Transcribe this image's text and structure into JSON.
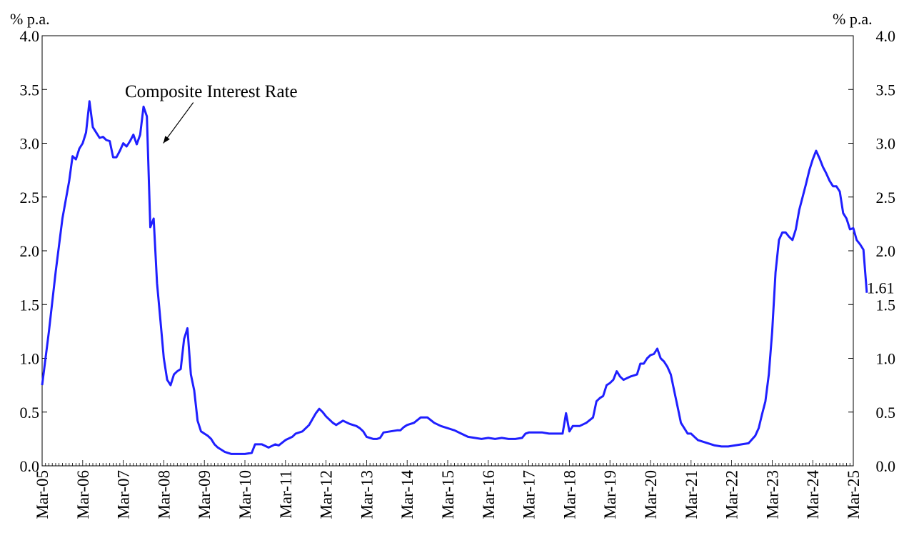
{
  "chart_data": {
    "type": "line",
    "unit_left": "% p.a.",
    "unit_right": "% p.a.",
    "ylim": [
      0,
      4
    ],
    "y_ticks": [
      "0.0",
      "0.5",
      "1.0",
      "1.5",
      "2.0",
      "2.5",
      "3.0",
      "3.5",
      "4.0"
    ],
    "x_tick_labels": [
      "Mar-05",
      "Mar-06",
      "Mar-07",
      "Mar-08",
      "Mar-09",
      "Mar-10",
      "Mar-11",
      "Mar-12",
      "Mar-13",
      "Mar-14",
      "Mar-15",
      "Mar-16",
      "Mar-17",
      "Mar-18",
      "Mar-19",
      "Mar-20",
      "Mar-21",
      "Mar-22",
      "Mar-23",
      "Mar-24",
      "Mar-25"
    ],
    "x_start": "2005-03",
    "x_end": "2025-03",
    "series": [
      {
        "name": "Composite Interest Rate",
        "color": "#1f1fff",
        "points": [
          [
            "2005-03",
            0.75
          ],
          [
            "2005-05",
            1.25
          ],
          [
            "2005-07",
            1.8
          ],
          [
            "2005-09",
            2.3
          ],
          [
            "2005-11",
            2.65
          ],
          [
            "2005-12",
            2.88
          ],
          [
            "2006-01",
            2.85
          ],
          [
            "2006-02",
            2.95
          ],
          [
            "2006-03",
            3.0
          ],
          [
            "2006-04",
            3.1
          ],
          [
            "2006-05",
            3.39
          ],
          [
            "2006-06",
            3.15
          ],
          [
            "2006-07",
            3.1
          ],
          [
            "2006-08",
            3.05
          ],
          [
            "2006-09",
            3.06
          ],
          [
            "2006-10",
            3.03
          ],
          [
            "2006-11",
            3.02
          ],
          [
            "2006-12",
            2.87
          ],
          [
            "2007-01",
            2.87
          ],
          [
            "2007-02",
            2.93
          ],
          [
            "2007-03",
            3.0
          ],
          [
            "2007-04",
            2.97
          ],
          [
            "2007-05",
            3.02
          ],
          [
            "2007-06",
            3.08
          ],
          [
            "2007-07",
            2.99
          ],
          [
            "2007-08",
            3.08
          ],
          [
            "2007-09",
            3.34
          ],
          [
            "2007-10",
            3.25
          ],
          [
            "2007-11",
            2.22
          ],
          [
            "2007-12",
            2.3
          ],
          [
            "2008-01",
            1.7
          ],
          [
            "2008-02",
            1.35
          ],
          [
            "2008-03",
            1.0
          ],
          [
            "2008-04",
            0.8
          ],
          [
            "2008-05",
            0.75
          ],
          [
            "2008-06",
            0.85
          ],
          [
            "2008-07",
            0.88
          ],
          [
            "2008-08",
            0.9
          ],
          [
            "2008-09",
            1.18
          ],
          [
            "2008-10",
            1.28
          ],
          [
            "2008-11",
            0.85
          ],
          [
            "2008-12",
            0.7
          ],
          [
            "2009-01",
            0.42
          ],
          [
            "2009-02",
            0.32
          ],
          [
            "2009-03",
            0.3
          ],
          [
            "2009-04",
            0.28
          ],
          [
            "2009-05",
            0.25
          ],
          [
            "2009-06",
            0.2
          ],
          [
            "2009-07",
            0.17
          ],
          [
            "2009-08",
            0.15
          ],
          [
            "2009-09",
            0.13
          ],
          [
            "2009-10",
            0.12
          ],
          [
            "2009-11",
            0.11
          ],
          [
            "2010-01",
            0.11
          ],
          [
            "2010-03",
            0.11
          ],
          [
            "2010-05",
            0.12
          ],
          [
            "2010-06",
            0.2
          ],
          [
            "2010-08",
            0.2
          ],
          [
            "2010-10",
            0.17
          ],
          [
            "2010-12",
            0.2
          ],
          [
            "2011-01",
            0.19
          ],
          [
            "2011-03",
            0.24
          ],
          [
            "2011-05",
            0.27
          ],
          [
            "2011-06",
            0.3
          ],
          [
            "2011-08",
            0.32
          ],
          [
            "2011-10",
            0.38
          ],
          [
            "2011-12",
            0.49
          ],
          [
            "2012-01",
            0.53
          ],
          [
            "2012-02",
            0.5
          ],
          [
            "2012-03",
            0.46
          ],
          [
            "2012-05",
            0.4
          ],
          [
            "2012-06",
            0.38
          ],
          [
            "2012-08",
            0.42
          ],
          [
            "2012-10",
            0.39
          ],
          [
            "2012-12",
            0.37
          ],
          [
            "2013-01",
            0.35
          ],
          [
            "2013-02",
            0.32
          ],
          [
            "2013-03",
            0.27
          ],
          [
            "2013-05",
            0.25
          ],
          [
            "2013-06",
            0.25
          ],
          [
            "2013-07",
            0.26
          ],
          [
            "2013-08",
            0.31
          ],
          [
            "2013-10",
            0.32
          ],
          [
            "2013-12",
            0.33
          ],
          [
            "2014-01",
            0.33
          ],
          [
            "2014-02",
            0.36
          ],
          [
            "2014-03",
            0.38
          ],
          [
            "2014-05",
            0.4
          ],
          [
            "2014-07",
            0.45
          ],
          [
            "2014-09",
            0.45
          ],
          [
            "2014-11",
            0.4
          ],
          [
            "2015-01",
            0.37
          ],
          [
            "2015-03",
            0.35
          ],
          [
            "2015-05",
            0.33
          ],
          [
            "2015-07",
            0.3
          ],
          [
            "2015-09",
            0.27
          ],
          [
            "2015-11",
            0.26
          ],
          [
            "2016-01",
            0.25
          ],
          [
            "2016-03",
            0.26
          ],
          [
            "2016-05",
            0.25
          ],
          [
            "2016-07",
            0.26
          ],
          [
            "2016-09",
            0.25
          ],
          [
            "2016-11",
            0.25
          ],
          [
            "2017-01",
            0.26
          ],
          [
            "2017-02",
            0.3
          ],
          [
            "2017-03",
            0.31
          ],
          [
            "2017-05",
            0.31
          ],
          [
            "2017-07",
            0.31
          ],
          [
            "2017-09",
            0.3
          ],
          [
            "2017-11",
            0.3
          ],
          [
            "2018-01",
            0.3
          ],
          [
            "2018-02",
            0.49
          ],
          [
            "2018-03",
            0.32
          ],
          [
            "2018-04",
            0.37
          ],
          [
            "2018-06",
            0.37
          ],
          [
            "2018-08",
            0.4
          ],
          [
            "2018-10",
            0.45
          ],
          [
            "2018-11",
            0.6
          ],
          [
            "2018-12",
            0.63
          ],
          [
            "2019-01",
            0.65
          ],
          [
            "2019-02",
            0.75
          ],
          [
            "2019-03",
            0.77
          ],
          [
            "2019-04",
            0.8
          ],
          [
            "2019-05",
            0.88
          ],
          [
            "2019-06",
            0.83
          ],
          [
            "2019-07",
            0.8
          ],
          [
            "2019-09",
            0.83
          ],
          [
            "2019-11",
            0.85
          ],
          [
            "2019-12",
            0.95
          ],
          [
            "2020-01",
            0.95
          ],
          [
            "2020-02",
            1.0
          ],
          [
            "2020-03",
            1.03
          ],
          [
            "2020-04",
            1.04
          ],
          [
            "2020-05",
            1.09
          ],
          [
            "2020-06",
            1.0
          ],
          [
            "2020-07",
            0.97
          ],
          [
            "2020-08",
            0.92
          ],
          [
            "2020-09",
            0.85
          ],
          [
            "2020-10",
            0.7
          ],
          [
            "2020-11",
            0.55
          ],
          [
            "2020-12",
            0.4
          ],
          [
            "2021-01",
            0.35
          ],
          [
            "2021-02",
            0.3
          ],
          [
            "2021-03",
            0.3
          ],
          [
            "2021-04",
            0.27
          ],
          [
            "2021-05",
            0.24
          ],
          [
            "2021-06",
            0.23
          ],
          [
            "2021-08",
            0.21
          ],
          [
            "2021-10",
            0.19
          ],
          [
            "2021-12",
            0.18
          ],
          [
            "2022-02",
            0.18
          ],
          [
            "2022-04",
            0.19
          ],
          [
            "2022-06",
            0.2
          ],
          [
            "2022-08",
            0.21
          ],
          [
            "2022-10",
            0.28
          ],
          [
            "2022-11",
            0.35
          ],
          [
            "2022-12",
            0.48
          ],
          [
            "2023-01",
            0.6
          ],
          [
            "2023-02",
            0.85
          ],
          [
            "2023-03",
            1.25
          ],
          [
            "2023-04",
            1.8
          ],
          [
            "2023-05",
            2.1
          ],
          [
            "2023-06",
            2.17
          ],
          [
            "2023-07",
            2.17
          ],
          [
            "2023-08",
            2.13
          ],
          [
            "2023-09",
            2.1
          ],
          [
            "2023-10",
            2.2
          ],
          [
            "2023-11",
            2.38
          ],
          [
            "2023-12",
            2.5
          ],
          [
            "2024-01",
            2.62
          ],
          [
            "2024-02",
            2.75
          ],
          [
            "2024-03",
            2.85
          ],
          [
            "2024-04",
            2.93
          ],
          [
            "2024-05",
            2.86
          ],
          [
            "2024-06",
            2.78
          ],
          [
            "2024-07",
            2.72
          ],
          [
            "2024-08",
            2.65
          ],
          [
            "2024-09",
            2.6
          ],
          [
            "2024-10",
            2.6
          ],
          [
            "2024-11",
            2.55
          ],
          [
            "2024-12",
            2.35
          ],
          [
            "2025-01",
            2.3
          ],
          [
            "2025-02",
            2.2
          ],
          [
            "2025-03",
            2.21
          ],
          [
            "2025-04",
            2.1
          ],
          [
            "2025-05",
            2.06
          ],
          [
            "2025-06",
            2.01
          ],
          [
            "2025-07",
            1.61
          ]
        ]
      }
    ],
    "annotations": [
      {
        "text": "Composite Interest Rate",
        "arrow_to": [
          "2008-02",
          3.0
        ]
      },
      {
        "text": "1.61",
        "at": [
          "2025-07",
          1.61
        ]
      }
    ]
  }
}
